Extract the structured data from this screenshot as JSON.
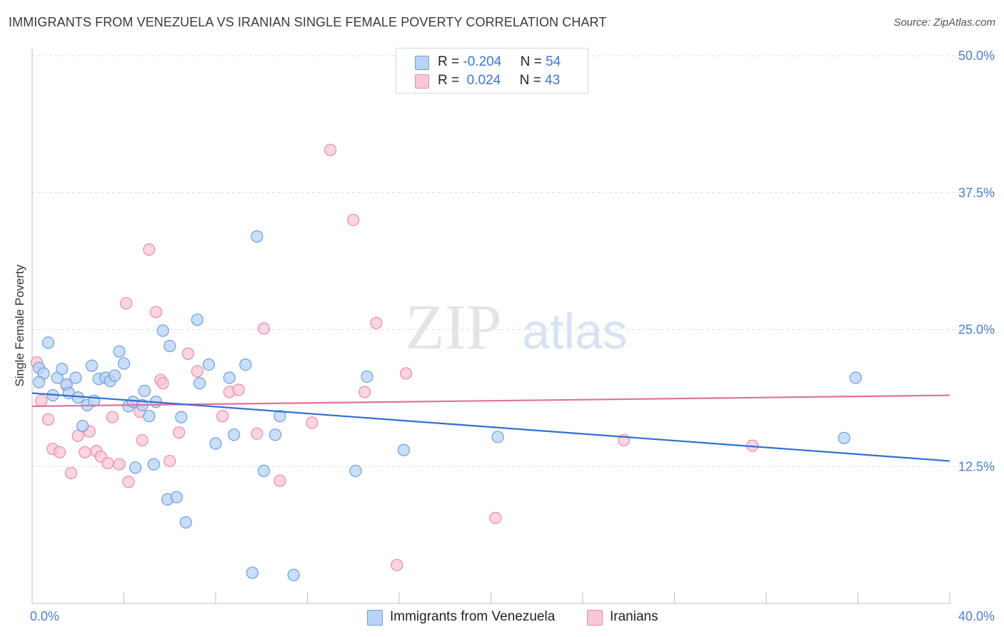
{
  "title": "IMMIGRANTS FROM VENEZUELA VS IRANIAN SINGLE FEMALE POVERTY CORRELATION CHART",
  "source": "Source: ZipAtlas.com",
  "watermark": {
    "zip": "ZIP",
    "atlas": "atlas"
  },
  "legend": {
    "rows": [
      {
        "r_label": "R =",
        "r_value": "-0.204",
        "n_label": "N =",
        "n_value": "54"
      },
      {
        "r_label": "R =",
        "r_value": "0.024",
        "n_label": "N =",
        "n_value": "43"
      }
    ]
  },
  "bottom_legend": [
    "Immigrants from Venezuela",
    "Iranians"
  ],
  "colors": {
    "blue_fill": "#b9d3f5",
    "blue_stroke": "#6b9fe0",
    "blue_line": "#2f6fd2",
    "pink_fill": "#f9c7d6",
    "pink_stroke": "#ea8aa9",
    "pink_line": "#e2729a",
    "axis_text": "#4a7fd0",
    "grid": "#dcdcdc"
  },
  "chart_data": {
    "type": "scatter",
    "title": "IMMIGRANTS FROM VENEZUELA VS IRANIAN SINGLE FEMALE POVERTY CORRELATION CHART",
    "xlabel": "",
    "ylabel": "Single Female Poverty",
    "xlim": [
      0,
      40
    ],
    "ylim": [
      0,
      50
    ],
    "x_tick_labels": [
      "0.0%",
      "40.0%"
    ],
    "y_ticks": [
      12.5,
      25.0,
      37.5,
      50.0
    ],
    "y_tick_labels": [
      "12.5%",
      "25.0%",
      "37.5%",
      "50.0%"
    ],
    "grid": true,
    "legend_position": "top-center",
    "series": [
      {
        "name": "Immigrants from Venezuela",
        "r": -0.204,
        "n": 54,
        "trend": {
          "x": [
            0,
            40
          ],
          "y": [
            19.2,
            13.0
          ]
        },
        "points": [
          [
            0.3,
            21.5
          ],
          [
            0.5,
            21.0
          ],
          [
            0.3,
            20.2
          ],
          [
            0.7,
            23.8
          ],
          [
            0.9,
            19.0
          ],
          [
            1.1,
            20.6
          ],
          [
            1.3,
            21.4
          ],
          [
            1.5,
            20.0
          ],
          [
            1.6,
            19.2
          ],
          [
            1.9,
            20.6
          ],
          [
            2.0,
            18.8
          ],
          [
            2.2,
            16.2
          ],
          [
            2.4,
            18.1
          ],
          [
            2.6,
            21.7
          ],
          [
            2.7,
            18.5
          ],
          [
            2.9,
            20.5
          ],
          [
            3.2,
            20.6
          ],
          [
            3.4,
            20.3
          ],
          [
            3.6,
            20.8
          ],
          [
            3.8,
            23.0
          ],
          [
            4.0,
            21.9
          ],
          [
            4.2,
            18.0
          ],
          [
            4.4,
            18.4
          ],
          [
            4.5,
            12.4
          ],
          [
            4.8,
            18.1
          ],
          [
            4.9,
            19.4
          ],
          [
            5.1,
            17.1
          ],
          [
            5.3,
            12.7
          ],
          [
            5.4,
            18.4
          ],
          [
            5.7,
            24.9
          ],
          [
            5.9,
            9.5
          ],
          [
            6.0,
            23.5
          ],
          [
            6.3,
            9.7
          ],
          [
            6.5,
            17.0
          ],
          [
            6.7,
            7.4
          ],
          [
            7.2,
            25.9
          ],
          [
            7.3,
            20.1
          ],
          [
            7.7,
            21.8
          ],
          [
            8.0,
            14.6
          ],
          [
            8.6,
            20.6
          ],
          [
            8.8,
            15.4
          ],
          [
            9.3,
            21.8
          ],
          [
            9.6,
            2.8
          ],
          [
            9.8,
            33.5
          ],
          [
            10.1,
            12.1
          ],
          [
            10.6,
            15.4
          ],
          [
            10.8,
            17.1
          ],
          [
            11.4,
            2.6
          ],
          [
            14.1,
            12.1
          ],
          [
            14.6,
            20.7
          ],
          [
            16.2,
            14.0
          ],
          [
            20.3,
            15.2
          ],
          [
            35.4,
            15.1
          ],
          [
            35.9,
            20.6
          ]
        ]
      },
      {
        "name": "Iranians",
        "r": 0.024,
        "n": 43,
        "trend": {
          "x": [
            0,
            40
          ],
          "y": [
            18.0,
            19.0
          ]
        },
        "points": [
          [
            0.2,
            22.0
          ],
          [
            0.4,
            18.5
          ],
          [
            0.7,
            16.8
          ],
          [
            0.9,
            14.1
          ],
          [
            1.2,
            13.8
          ],
          [
            1.5,
            19.9
          ],
          [
            1.7,
            11.9
          ],
          [
            2.0,
            15.3
          ],
          [
            2.3,
            13.8
          ],
          [
            2.5,
            15.7
          ],
          [
            2.8,
            13.9
          ],
          [
            3.0,
            13.4
          ],
          [
            3.3,
            12.8
          ],
          [
            3.5,
            17.0
          ],
          [
            3.8,
            12.7
          ],
          [
            4.1,
            27.4
          ],
          [
            4.2,
            11.1
          ],
          [
            4.7,
            17.5
          ],
          [
            4.8,
            14.9
          ],
          [
            5.1,
            32.3
          ],
          [
            5.4,
            26.6
          ],
          [
            5.6,
            20.4
          ],
          [
            5.7,
            20.1
          ],
          [
            6.0,
            13.0
          ],
          [
            6.4,
            15.6
          ],
          [
            6.8,
            22.8
          ],
          [
            7.2,
            21.2
          ],
          [
            8.3,
            17.1
          ],
          [
            8.6,
            19.3
          ],
          [
            9.0,
            19.5
          ],
          [
            9.8,
            15.5
          ],
          [
            10.1,
            25.1
          ],
          [
            10.8,
            11.2
          ],
          [
            12.2,
            16.5
          ],
          [
            13.0,
            41.4
          ],
          [
            14.0,
            35.0
          ],
          [
            14.5,
            19.3
          ],
          [
            15.0,
            25.6
          ],
          [
            15.9,
            3.5
          ],
          [
            16.3,
            21.0
          ],
          [
            20.2,
            7.8
          ],
          [
            25.8,
            14.9
          ],
          [
            31.4,
            14.4
          ]
        ]
      }
    ]
  }
}
